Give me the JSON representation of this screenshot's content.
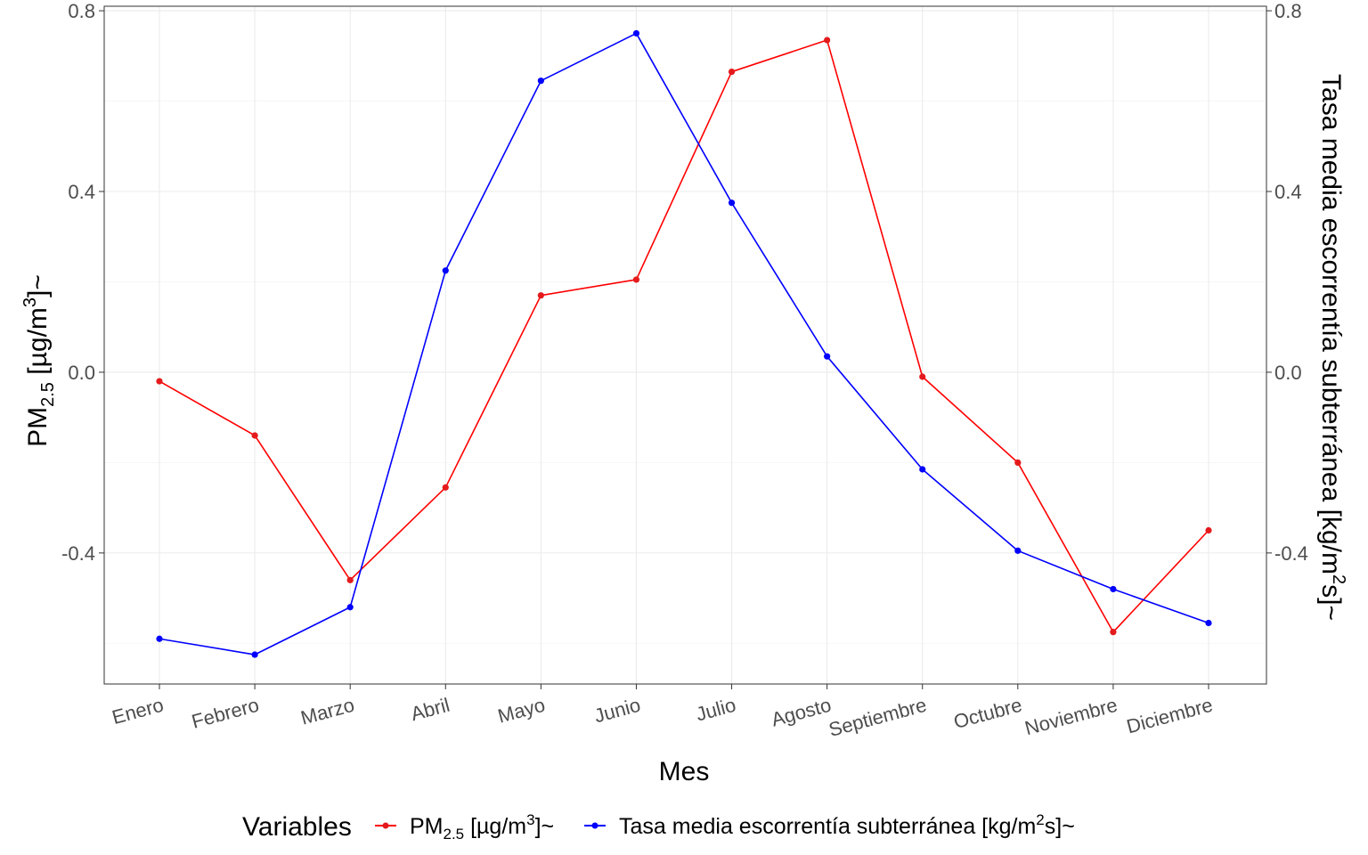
{
  "chart_data": {
    "type": "line",
    "categories": [
      "Enero",
      "Febrero",
      "Marzo",
      "Abril",
      "Mayo",
      "Junio",
      "Julio",
      "Agosto",
      "Septiembre",
      "Octubre",
      "Noviembre",
      "Diciembre"
    ],
    "series": [
      {
        "name": "PM2.5 [µg/m3]~",
        "color": "#e41a1c",
        "line_color": "#ff0000",
        "values": [
          -0.02,
          -0.14,
          -0.46,
          -0.255,
          0.17,
          0.205,
          0.665,
          0.735,
          -0.01,
          -0.2,
          -0.575,
          -0.35
        ]
      },
      {
        "name": "Tasa media escorrentía subterránea [kg/m2s]~",
        "color": "#0000ff",
        "line_color": "#0000ff",
        "values": [
          -0.59,
          -0.625,
          -0.52,
          0.225,
          0.645,
          0.75,
          0.375,
          0.035,
          -0.215,
          -0.395,
          -0.48,
          -0.555
        ]
      }
    ],
    "xlabel": "Mes",
    "ylabel": "PM2.5 [µg/m3]~",
    "y2label": "Tasa media escorrentía subterránea [kg/m2s]~",
    "ylim": [
      -0.69,
      0.81
    ],
    "yticks": [
      -0.4,
      0.0,
      0.4,
      0.8
    ],
    "ytick_labels": [
      "-0.4",
      "0.0",
      "0.4",
      "0.8"
    ],
    "y2ticks": [
      -0.4,
      0.0,
      0.4,
      0.8
    ],
    "y2tick_labels": [
      "-0.4",
      "0.0",
      "0.4",
      "0.8"
    ],
    "grid": true,
    "legend_position": "bottom",
    "legend_title": "Variables",
    "ylabel_parts": {
      "base": "PM",
      "sub": "2.5",
      "pre_sup": " [µg/m",
      "sup": "3",
      "post": "]~"
    },
    "y2label_parts": {
      "pre": "Tasa media escorrentía subterránea [kg/m",
      "sup": "2",
      "post": "s]~"
    },
    "legend_items": [
      {
        "base": "PM",
        "sub": "2.5",
        "pre_sup": " [µg/m",
        "sup": "3",
        "post": "]~"
      },
      {
        "pre": "Tasa media escorrentía subterránea  [kg/m",
        "sup": "2",
        "post": "s]~"
      }
    ]
  }
}
